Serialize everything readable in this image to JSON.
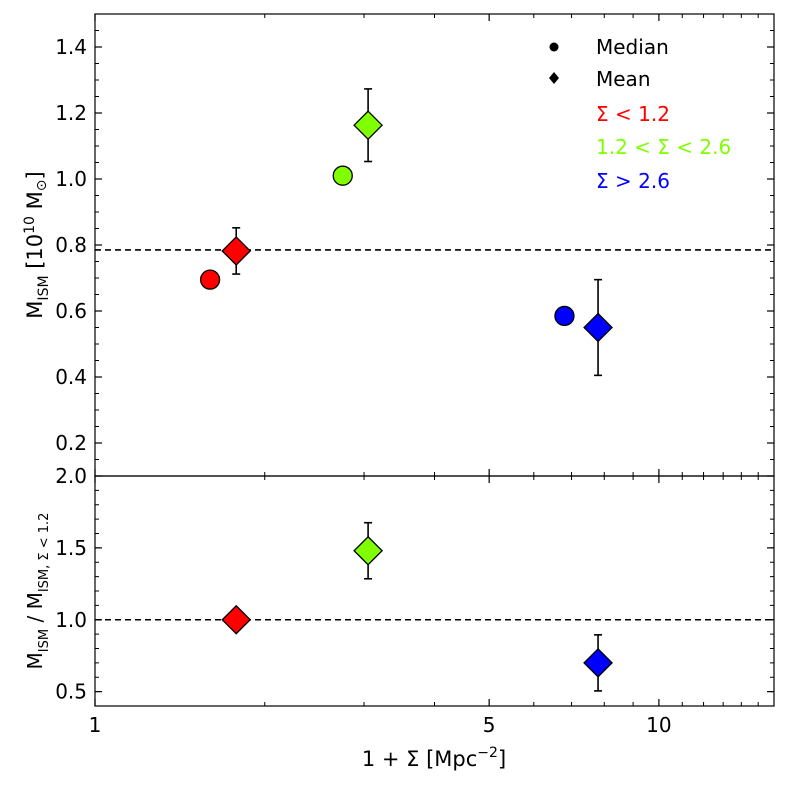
{
  "chart_data": [
    {
      "type": "scatter",
      "panel": "top",
      "xscale": "log",
      "xlim": [
        1,
        16
      ],
      "ylim": [
        0.1,
        1.5
      ],
      "ylabel_main": "M",
      "ylabel_sub": "ISM",
      "ylabel_rest": " [10",
      "ylabel_sup": "10",
      "ylabel_end": " M",
      "ylabel_sun": "⊙",
      "ylabel_close": "]",
      "yticks": [
        "0.2",
        "0.4",
        "0.6",
        "0.8",
        "1.0",
        "1.2",
        "1.4"
      ],
      "ytick_values": [
        0.2,
        0.4,
        0.6,
        0.8,
        1.0,
        1.2,
        1.4
      ],
      "hline": 0.785,
      "series": [
        {
          "name": "Σ < 1.2",
          "color": "#ff0000",
          "median": {
            "x": 1.6,
            "y": 0.695
          },
          "mean": {
            "x": 1.78,
            "y": 0.782,
            "err": 0.07
          }
        },
        {
          "name": "1.2 < Σ < 2.6",
          "color": "#7fff00",
          "median": {
            "x": 2.75,
            "y": 1.01
          },
          "mean": {
            "x": 3.05,
            "y": 1.163,
            "err": 0.11
          }
        },
        {
          "name": "Σ > 2.6",
          "color": "#0000ff",
          "median": {
            "x": 6.8,
            "y": 0.585
          },
          "mean": {
            "x": 7.8,
            "y": 0.55,
            "err": 0.145
          }
        }
      ],
      "legend": {
        "position": "top-right",
        "markers": [
          {
            "label": "Median",
            "shape": "circle"
          },
          {
            "label": "Mean",
            "shape": "diamond"
          }
        ],
        "entries": [
          {
            "label": "Σ < 1.2",
            "color": "#ff0000"
          },
          {
            "label": "1.2 < Σ < 2.6",
            "color": "#7fff00"
          },
          {
            "label": "Σ > 2.6",
            "color": "#0000ff"
          }
        ]
      }
    },
    {
      "type": "scatter",
      "panel": "bottom",
      "xscale": "log",
      "xlim": [
        1,
        16
      ],
      "ylim": [
        0.4,
        2.0
      ],
      "ylabel_a": "M",
      "ylabel_a_sub": "ISM",
      "ylabel_slash": " / M",
      "ylabel_b_sub": "ISM, Σ < 1.2",
      "yticks": [
        "0.5",
        "1.0",
        "1.5",
        "2.0"
      ],
      "ytick_values": [
        0.5,
        1.0,
        1.5,
        2.0
      ],
      "hline": 1.0,
      "xlabel": "1 + Σ [Mpc",
      "xlabel_sup": "−2",
      "xlabel_end": "]",
      "xticks": [
        "1",
        "5",
        "10"
      ],
      "xtick_values": [
        1,
        5,
        10
      ],
      "series": [
        {
          "name": "Σ < 1.2",
          "color": "#ff0000",
          "mean": {
            "x": 1.78,
            "y": 1.0,
            "err": 0
          }
        },
        {
          "name": "1.2 < Σ < 2.6",
          "color": "#7fff00",
          "mean": {
            "x": 3.05,
            "y": 1.48,
            "err": 0.195
          }
        },
        {
          "name": "Σ > 2.6",
          "color": "#0000ff",
          "mean": {
            "x": 7.8,
            "y": 0.7,
            "err": 0.195
          }
        }
      ]
    }
  ]
}
